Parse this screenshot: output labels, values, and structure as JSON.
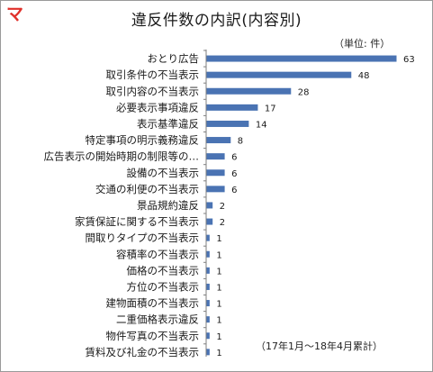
{
  "header": {
    "title": "違反件数の内訳(内容別)",
    "unit": "（単位: 件）",
    "note": "（17年1月～18年4月累計）",
    "logo_text": "マ!"
  },
  "colors": {
    "bar": "#4a73b3",
    "logo": "#e0302a"
  },
  "chart_data": {
    "type": "bar",
    "orientation": "horizontal",
    "title": "違反件数の内訳(内容別)",
    "unit": "件",
    "categories": [
      "おとり広告",
      "取引条件の不当表示",
      "取引内容の不当表示",
      "必要表示事項違反",
      "表示基準違反",
      "特定事項の明示義務違反",
      "広告表示の開始時期の制限等の…",
      "設備の不当表示",
      "交通の利便の不当表示",
      "景品規約違反",
      "家賃保証に関する不当表示",
      "間取りタイプの不当表示",
      "容積率の不当表示",
      "価格の不当表示",
      "方位の不当表示",
      "建物面積の不当表示",
      "二重価格表示違反",
      "物件写真の不当表示",
      "賃料及び礼金の不当表示"
    ],
    "values": [
      63,
      48,
      28,
      17,
      14,
      8,
      6,
      6,
      6,
      2,
      2,
      1,
      1,
      1,
      1,
      1,
      1,
      1,
      1
    ],
    "xlim": [
      0,
      63
    ],
    "grid": false,
    "legend": false
  }
}
